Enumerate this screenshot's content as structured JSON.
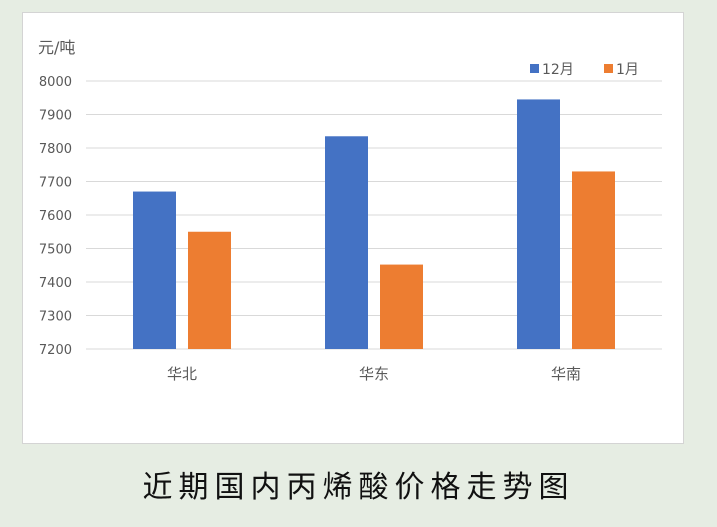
{
  "caption": "近期国内丙烯酸价格走势图",
  "chart_data": {
    "type": "bar",
    "unit_label": "元/吨",
    "categories": [
      "华北",
      "华东",
      "华南"
    ],
    "series": [
      {
        "name": "12月",
        "values": [
          7670,
          7835,
          7945
        ],
        "color": "#4472c4"
      },
      {
        "name": "1月",
        "values": [
          7550,
          7452,
          7730
        ],
        "color": "#ed7d31"
      }
    ],
    "ylim": [
      7200,
      8000
    ],
    "yticks": [
      "7200",
      "7300",
      "7400",
      "7500",
      "7600",
      "7700",
      "7800",
      "7900",
      "8000"
    ],
    "grid": true,
    "legend": "top-right",
    "colors": {
      "gridline": "#d9d9d9",
      "axis_text": "#595959"
    }
  }
}
